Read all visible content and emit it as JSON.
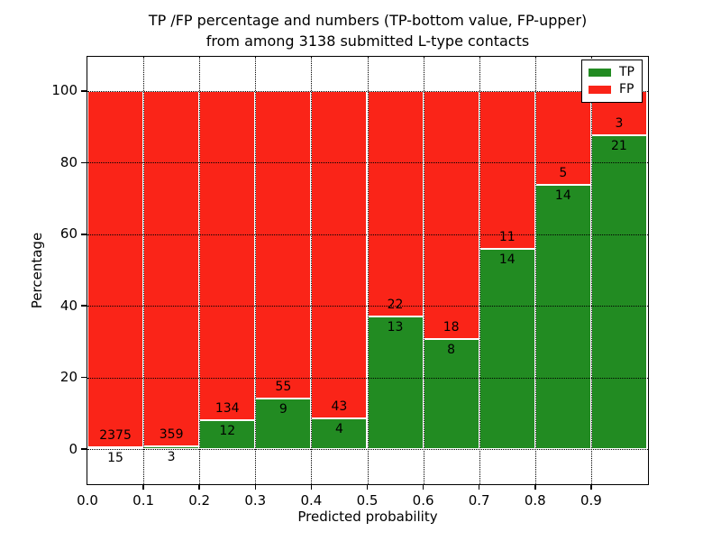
{
  "title": {
    "line1": "TP /FP percentage and numbers (TP-bottom value, FP-upper)",
    "line2": "from among 3138 submitted L-type contacts"
  },
  "chart_data": {
    "type": "bar",
    "stacked": true,
    "total_contacts": 3138,
    "bin_edges": [
      0.0,
      0.1,
      0.2,
      0.3,
      0.4,
      0.5,
      0.6,
      0.7,
      0.8,
      0.9,
      1.0
    ],
    "categories": [
      "0.0-0.1",
      "0.1-0.2",
      "0.2-0.3",
      "0.3-0.4",
      "0.4-0.5",
      "0.5-0.6",
      "0.6-0.7",
      "0.7-0.8",
      "0.8-0.9",
      "0.9-1.0"
    ],
    "series": [
      {
        "name": "TP",
        "color": "#228b22",
        "counts": [
          15,
          3,
          12,
          9,
          4,
          13,
          8,
          14,
          14,
          21
        ]
      },
      {
        "name": "FP",
        "color": "#fa2418",
        "counts": [
          2375,
          359,
          134,
          55,
          43,
          22,
          18,
          11,
          5,
          3
        ]
      }
    ],
    "tp_percent_of_bin": [
      0.63,
      0.83,
      8.22,
      14.06,
      8.51,
      37.14,
      30.77,
      56.0,
      73.68,
      87.5
    ],
    "xlabel": "Predicted probability",
    "ylabel": "Percentage",
    "xticks": [
      "0.0",
      "0.1",
      "0.2",
      "0.3",
      "0.4",
      "0.5",
      "0.6",
      "0.7",
      "0.8",
      "0.9"
    ],
    "yticks": [
      0,
      20,
      40,
      60,
      80,
      100
    ],
    "ylim": [
      -9.5,
      109.5
    ],
    "grid": true,
    "legend": {
      "position": "upper right",
      "entries": [
        "TP",
        "FP"
      ]
    },
    "bar_edge_color": "#ffffff"
  }
}
